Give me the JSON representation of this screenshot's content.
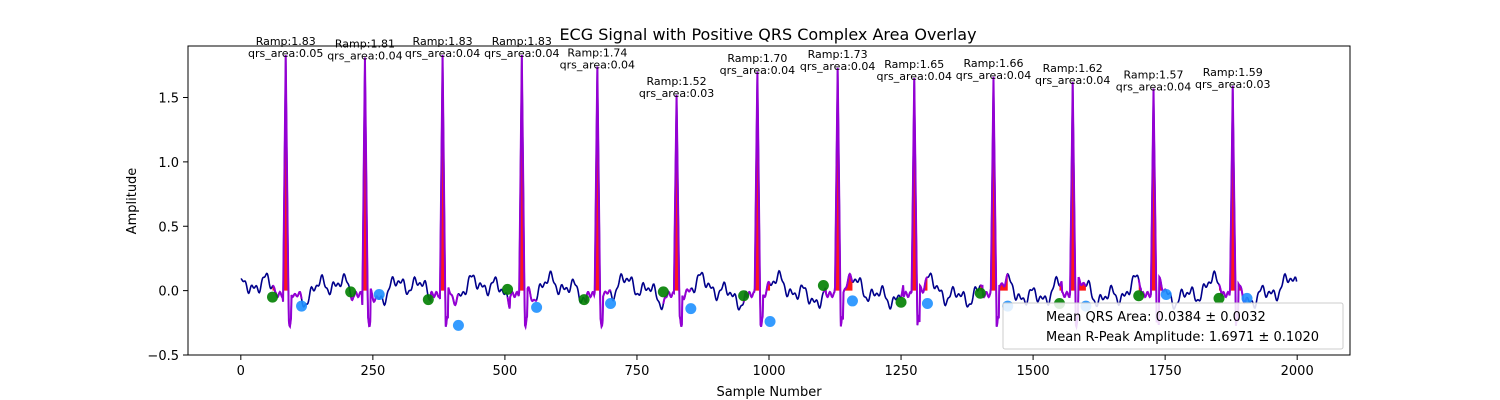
{
  "chart_data": {
    "type": "line",
    "title": "ECG Signal with Positive QRS Complex Area Overlay",
    "xlabel": "Sample Number",
    "ylabel": "Amplitude",
    "xlim": [
      -100,
      2100
    ],
    "ylim": [
      -0.5,
      1.9
    ],
    "x_ticks": [
      0,
      250,
      500,
      750,
      1000,
      1250,
      1500,
      1750,
      2000
    ],
    "y_ticks": [
      -0.5,
      0.0,
      0.5,
      1.0,
      1.5
    ],
    "y_tick_labels": [
      "−0.5",
      "0.0",
      "0.5",
      "1.0",
      "1.5"
    ],
    "grid": false,
    "legend_position": "lower-right",
    "legend": [
      "Mean QRS Area: 0.0384 ± 0.0032",
      "Mean R-Peak Amplitude: 1.6971 ± 0.1020"
    ],
    "colors": {
      "signal": "#00008b",
      "qrs_segment": "#9400d3",
      "qrs_fill": "#ff0000",
      "onset_marker": "#008000",
      "offset_marker": "#1e90ff"
    },
    "signal_samples": 2000,
    "beats": [
      {
        "r_sample": 85,
        "r_amp": 1.83,
        "qrs_area": 0.05,
        "ann_r": "Ramp:1.83",
        "ann_area": "qrs_area:0.05",
        "onset": [
          60,
          -0.05
        ],
        "offset": [
          115,
          -0.12
        ]
      },
      {
        "r_sample": 235,
        "r_amp": 1.81,
        "qrs_area": 0.04,
        "ann_r": "Ramp:1.81",
        "ann_area": "qrs_area:0.04",
        "onset": [
          208,
          -0.01
        ],
        "offset": [
          262,
          -0.03
        ]
      },
      {
        "r_sample": 382,
        "r_amp": 1.83,
        "qrs_area": 0.04,
        "ann_r": "Ramp:1.83",
        "ann_area": "qrs_area:0.04",
        "onset": [
          355,
          -0.07
        ],
        "offset": [
          412,
          -0.27
        ]
      },
      {
        "r_sample": 532,
        "r_amp": 1.83,
        "qrs_area": 0.04,
        "ann_r": "Ramp:1.83",
        "ann_area": "qrs_area:0.04",
        "onset": [
          505,
          0.01
        ],
        "offset": [
          560,
          -0.13
        ]
      },
      {
        "r_sample": 675,
        "r_amp": 1.74,
        "qrs_area": 0.04,
        "ann_r": "Ramp:1.74",
        "ann_area": "qrs_area:0.04",
        "onset": [
          650,
          -0.07
        ],
        "offset": [
          700,
          -0.1
        ]
      },
      {
        "r_sample": 825,
        "r_amp": 1.52,
        "qrs_area": 0.03,
        "ann_r": "Ramp:1.52",
        "ann_area": "qrs_area:0.03",
        "onset": [
          800,
          -0.01
        ],
        "offset": [
          852,
          -0.14
        ]
      },
      {
        "r_sample": 978,
        "r_amp": 1.7,
        "qrs_area": 0.04,
        "ann_r": "Ramp:1.70",
        "ann_area": "qrs_area:0.04",
        "onset": [
          952,
          -0.04
        ],
        "offset": [
          1002,
          -0.24
        ]
      },
      {
        "r_sample": 1130,
        "r_amp": 1.73,
        "qrs_area": 0.04,
        "ann_r": "Ramp:1.73",
        "ann_area": "qrs_area:0.04",
        "onset": [
          1103,
          0.04
        ],
        "offset": [
          1158,
          -0.08
        ]
      },
      {
        "r_sample": 1275,
        "r_amp": 1.65,
        "qrs_area": 0.04,
        "ann_r": "Ramp:1.65",
        "ann_area": "qrs_area:0.04",
        "onset": [
          1250,
          -0.09
        ],
        "offset": [
          1300,
          -0.1
        ]
      },
      {
        "r_sample": 1425,
        "r_amp": 1.66,
        "qrs_area": 0.04,
        "ann_r": "Ramp:1.66",
        "ann_area": "qrs_area:0.04",
        "onset": [
          1400,
          -0.02
        ],
        "offset": [
          1452,
          -0.12
        ]
      },
      {
        "r_sample": 1575,
        "r_amp": 1.62,
        "qrs_area": 0.04,
        "ann_r": "Ramp:1.62",
        "ann_area": "qrs_area:0.04",
        "onset": [
          1550,
          -0.1
        ],
        "offset": [
          1600,
          -0.12
        ]
      },
      {
        "r_sample": 1728,
        "r_amp": 1.57,
        "qrs_area": 0.04,
        "ann_r": "Ramp:1.57",
        "ann_area": "qrs_area:0.04",
        "onset": [
          1700,
          -0.04
        ],
        "offset": [
          1752,
          -0.03
        ]
      },
      {
        "r_sample": 1878,
        "r_amp": 1.59,
        "qrs_area": 0.03,
        "ann_r": "Ramp:1.59",
        "ann_area": "qrs_area:0.03",
        "onset": [
          1852,
          -0.06
        ],
        "offset": [
          1905,
          -0.06
        ]
      }
    ]
  }
}
